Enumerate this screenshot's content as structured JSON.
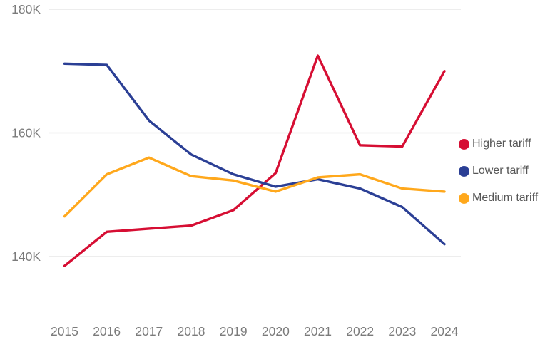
{
  "chart_data": {
    "type": "line",
    "title": "",
    "unit": "thousands (K)",
    "categories": [
      "2015",
      "2016",
      "2017",
      "2018",
      "2019",
      "2020",
      "2021",
      "2022",
      "2023",
      "2024"
    ],
    "series": [
      {
        "name": "Higher tariff",
        "color": "#d60e33",
        "values": [
          138.5,
          144.0,
          144.5,
          145.0,
          147.5,
          153.5,
          172.5,
          158.0,
          157.8,
          170.0
        ]
      },
      {
        "name": "Lower tariff",
        "color": "#2b3f95",
        "values": [
          171.2,
          171.0,
          162.0,
          156.5,
          153.3,
          151.3,
          152.5,
          151.0,
          148.0,
          142.0
        ]
      },
      {
        "name": "Medium tariff",
        "color": "#ffa81c",
        "values": [
          146.5,
          153.3,
          156.0,
          153.0,
          152.3,
          150.5,
          152.8,
          153.3,
          151.0,
          150.5
        ]
      }
    ],
    "y_ticks": [
      {
        "value": 180,
        "label": "180K"
      },
      {
        "value": 160,
        "label": "160K"
      },
      {
        "value": 140,
        "label": "140K"
      }
    ],
    "ylim_shown": [
      136,
      181
    ],
    "grid": "horizontal-only",
    "legend_position": "right"
  }
}
